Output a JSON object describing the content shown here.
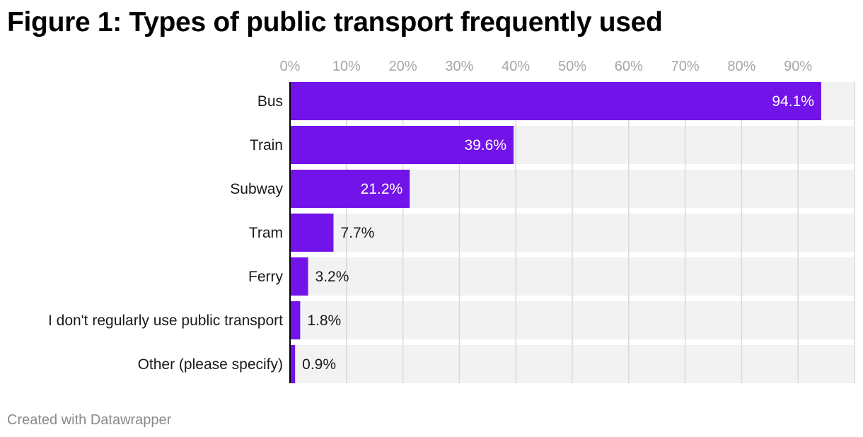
{
  "chart_data": {
    "type": "bar",
    "orientation": "horizontal",
    "title": "Figure 1: Types of public transport frequently used",
    "categories": [
      "Bus",
      "Train",
      "Subway",
      "Tram",
      "Ferry",
      "I don't regularly use public transport",
      "Other (please specify)"
    ],
    "values": [
      94.1,
      39.6,
      21.2,
      7.7,
      3.2,
      1.8,
      0.9
    ],
    "value_labels": [
      "94.1%",
      "39.6%",
      "21.2%",
      "7.7%",
      "3.2%",
      "1.8%",
      "0.9%"
    ],
    "xlim": [
      0,
      100
    ],
    "x_ticks": [
      0,
      10,
      20,
      30,
      40,
      50,
      60,
      70,
      80,
      90
    ],
    "x_tick_labels": [
      "0%",
      "10%",
      "20%",
      "30%",
      "40%",
      "50%",
      "60%",
      "70%",
      "80%",
      "90%"
    ],
    "xlabel": "",
    "ylabel": "",
    "grid": true,
    "axis_position": "top",
    "colors": {
      "bar": "#7213ea",
      "track": "#f2f2f2",
      "grid": "#d9d9d9",
      "axis": "#000000",
      "tick_text": "#a6a6a6",
      "label_text": "#1a1a1a",
      "inside_label": "#ffffff"
    }
  },
  "footer": "Created with Datawrapper"
}
